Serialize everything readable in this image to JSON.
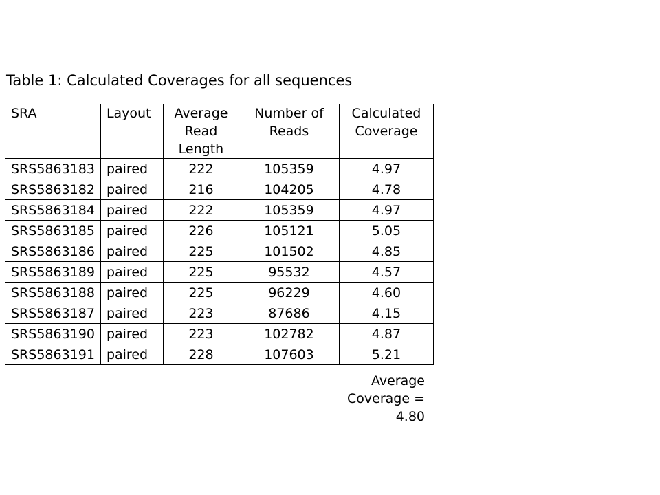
{
  "caption": "Table 1: Calculated Coverages for all sequences",
  "table": {
    "headers": {
      "sra": "SRA",
      "layout": "Layout",
      "avg_read_length": [
        "Average",
        "Read",
        "Length"
      ],
      "num_reads": [
        "Number of",
        "Reads"
      ],
      "coverage": [
        "Calculated",
        "Coverage"
      ]
    },
    "rows": [
      {
        "sra": "SRS5863183",
        "layout": "paired",
        "avg_read_length": "222",
        "num_reads": "105359",
        "coverage": "4.97"
      },
      {
        "sra": "SRS5863182",
        "layout": "paired",
        "avg_read_length": "216",
        "num_reads": "104205",
        "coverage": "4.78"
      },
      {
        "sra": "SRS5863184",
        "layout": "paired",
        "avg_read_length": "222",
        "num_reads": "105359",
        "coverage": "4.97"
      },
      {
        "sra": "SRS5863185",
        "layout": "paired",
        "avg_read_length": "226",
        "num_reads": "105121",
        "coverage": "5.05"
      },
      {
        "sra": "SRS5863186",
        "layout": "paired",
        "avg_read_length": "225",
        "num_reads": "101502",
        "coverage": "4.85"
      },
      {
        "sra": "SRS5863189",
        "layout": "paired",
        "avg_read_length": "225",
        "num_reads": "95532",
        "coverage": "4.57"
      },
      {
        "sra": "SRS5863188",
        "layout": "paired",
        "avg_read_length": "225",
        "num_reads": "96229",
        "coverage": "4.60"
      },
      {
        "sra": "SRS5863187",
        "layout": "paired",
        "avg_read_length": "223",
        "num_reads": "87686",
        "coverage": "4.15"
      },
      {
        "sra": "SRS5863190",
        "layout": "paired",
        "avg_read_length": "223",
        "num_reads": "102782",
        "coverage": "4.87"
      },
      {
        "sra": "SRS5863191",
        "layout": "paired",
        "avg_read_length": "228",
        "num_reads": "107603",
        "coverage": "5.21"
      }
    ]
  },
  "summary": {
    "lines": [
      "Average",
      "Coverage =",
      "4.80"
    ]
  }
}
